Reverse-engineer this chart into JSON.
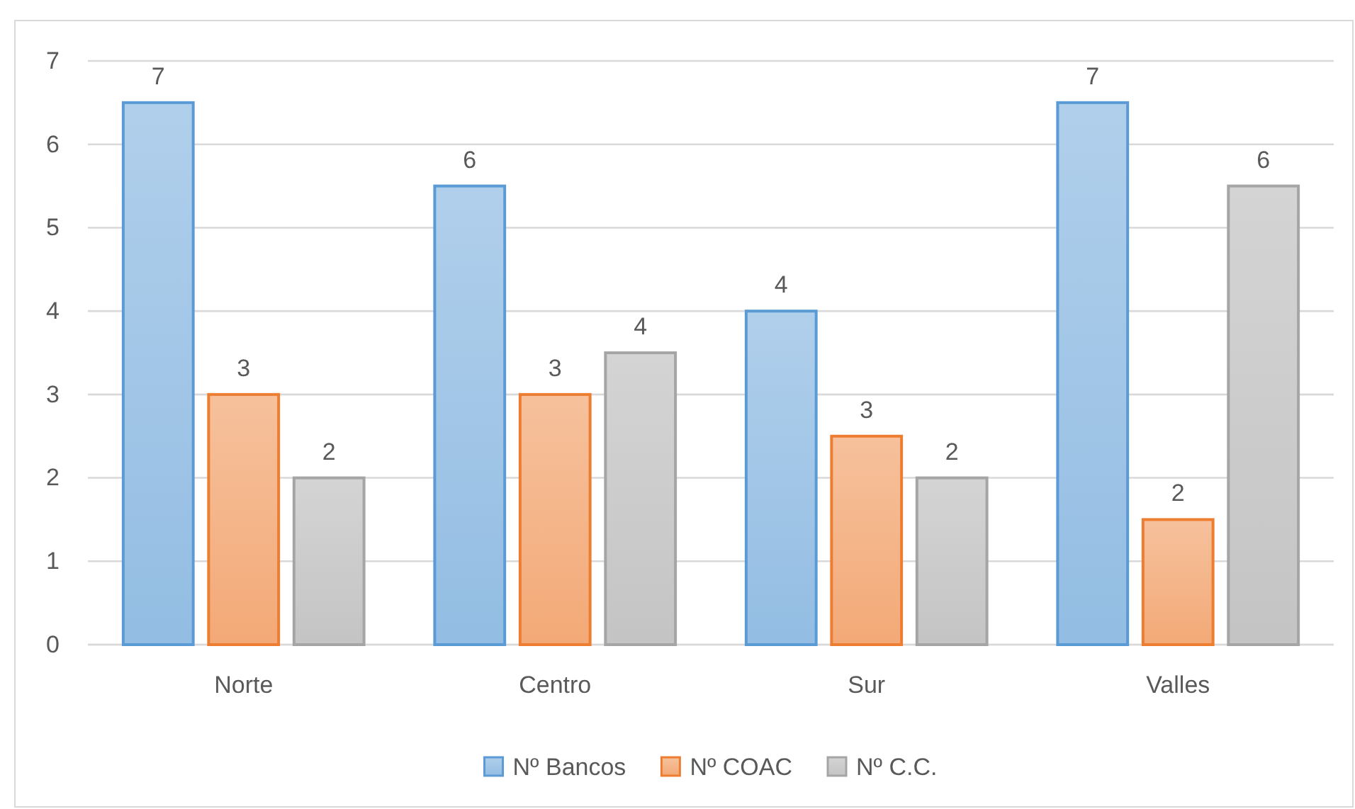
{
  "chart_data": {
    "type": "bar",
    "categories": [
      "Norte",
      "Centro",
      "Sur",
      "Valles"
    ],
    "series": [
      {
        "name": "Nº Bancos",
        "color": "#5b9bd5",
        "values": [
          6.5,
          5.5,
          4,
          6.5
        ],
        "value_labels": [
          "7",
          "6",
          "4",
          "7"
        ]
      },
      {
        "name": "Nº COAC",
        "color": "#ed7d31",
        "values": [
          3,
          3,
          2.5,
          1.5
        ],
        "value_labels": [
          "3",
          "3",
          "3",
          "2"
        ]
      },
      {
        "name": "Nº C.C.",
        "color": "#a5a5a5",
        "values": [
          2,
          3.5,
          2,
          5.5
        ],
        "value_labels": [
          "2",
          "4",
          "2",
          "6"
        ]
      }
    ],
    "ylim": [
      0,
      7
    ],
    "yticks": [
      0,
      1,
      2,
      3,
      4,
      5,
      6,
      7
    ],
    "grid": "y",
    "legend": "bottom"
  }
}
